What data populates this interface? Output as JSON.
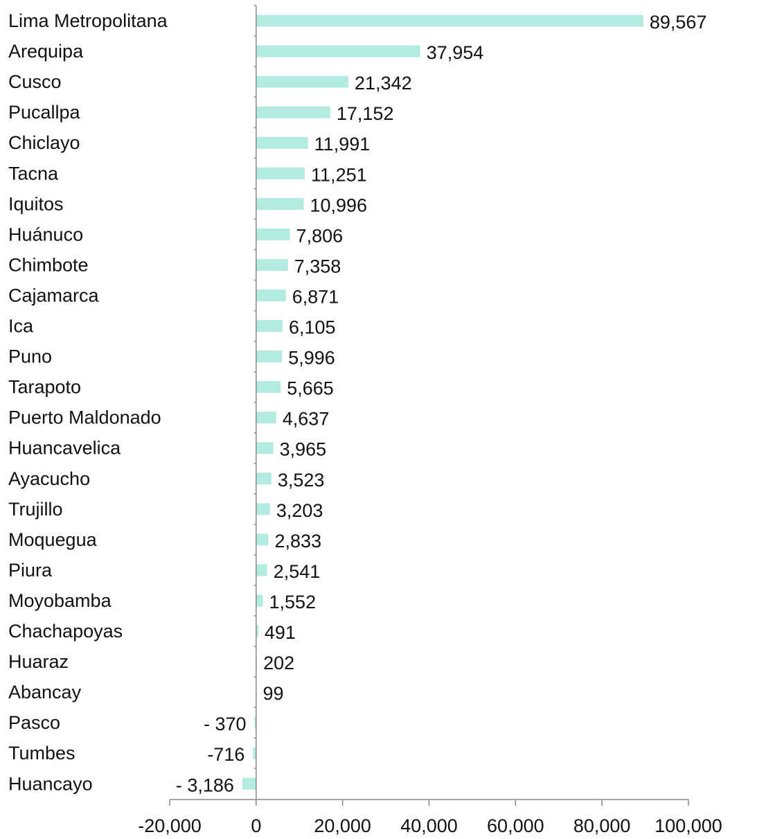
{
  "chart_data": {
    "type": "bar",
    "orientation": "horizontal",
    "title": "",
    "xlabel": "",
    "ylabel": "",
    "xlim": [
      -20000,
      100000
    ],
    "x_ticks": [
      -20000,
      0,
      20000,
      40000,
      60000,
      80000,
      100000
    ],
    "x_tick_labels": [
      "-20,000",
      "0",
      "20,000",
      "40,000",
      "60,000",
      "80,000",
      "100,000"
    ],
    "bar_color": "#b3ebe1",
    "grid": false,
    "legend": "none",
    "categories": [
      "Lima Metropolitana",
      "Arequipa",
      "Cusco",
      "Pucallpa",
      "Chiclayo",
      "Tacna",
      "Iquitos",
      "Huánuco",
      "Chimbote",
      "Cajamarca",
      "Ica",
      "Puno",
      "Tarapoto",
      "Puerto Maldonado",
      "Huancavelica",
      "Ayacucho",
      "Trujillo",
      "Moquegua",
      "Piura",
      "Moyobamba",
      "Chachapoyas",
      "Huaraz",
      "Abancay",
      "Pasco",
      "Tumbes",
      "Huancayo"
    ],
    "values": [
      89567,
      37954,
      21342,
      17152,
      11991,
      11251,
      10996,
      7806,
      7358,
      6871,
      6105,
      5996,
      5665,
      4637,
      3965,
      3523,
      3203,
      2833,
      2541,
      1552,
      491,
      202,
      99,
      -370,
      -716,
      -3186
    ],
    "value_labels": [
      "89,567",
      "37,954",
      "21,342",
      "17,152",
      "11,991",
      "11,251",
      "10,996",
      "7,806",
      "7,358",
      "6,871",
      "6,105",
      "5,996",
      "5,665",
      "4,637",
      "3,965",
      "3,523",
      "3,203",
      "2,833",
      "2,541",
      "1,552",
      "491",
      "202",
      "99",
      "- 370",
      "-716",
      "- 3,186"
    ]
  }
}
